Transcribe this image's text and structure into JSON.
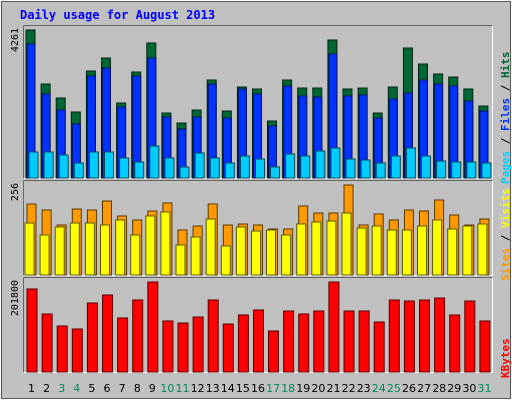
{
  "title": "Daily usage for August 2013",
  "colors": {
    "background": "#c0c0c0",
    "title": "#0000ff",
    "hits": "#006633",
    "files": "#0033ff",
    "pages": "#00ccff",
    "visits": "#ff9900",
    "sites": "#ffff00",
    "kbytes": "#ff0000",
    "weekend_day": "#008a5a",
    "weekday": "#000000"
  },
  "chart_data": [
    {
      "type": "bar",
      "title": "Daily usage for August 2013",
      "categories": [
        "1",
        "2",
        "3",
        "4",
        "5",
        "6",
        "7",
        "8",
        "9",
        "10",
        "11",
        "12",
        "13",
        "14",
        "15",
        "16",
        "17",
        "18",
        "19",
        "20",
        "21",
        "22",
        "23",
        "24",
        "25",
        "26",
        "27",
        "28",
        "29",
        "30",
        "31"
      ],
      "weekend_days": [
        "3",
        "4",
        "10",
        "11",
        "17",
        "18",
        "24",
        "25",
        "31"
      ],
      "y_max_label": "4261",
      "ylim": [
        0,
        4261
      ],
      "label_parts": [
        "Pages",
        " / ",
        "Files",
        " / ",
        "Hits"
      ],
      "series": [
        {
          "name": "Hits",
          "values": [
            4261,
            2720,
            2290,
            1900,
            3090,
            3450,
            2170,
            3050,
            3900,
            1860,
            1580,
            1970,
            2830,
            1940,
            2620,
            2550,
            1640,
            2820,
            2580,
            2590,
            3980,
            2570,
            2580,
            1860,
            2610,
            3730,
            3290,
            2990,
            2910,
            2570,
            2080
          ]
        },
        {
          "name": "Files",
          "values": [
            3860,
            2410,
            1970,
            1560,
            2930,
            3160,
            2040,
            2930,
            3460,
            1760,
            1400,
            1770,
            2720,
            1720,
            2560,
            2430,
            1500,
            2650,
            2350,
            2340,
            3570,
            2360,
            2400,
            1730,
            2280,
            2450,
            2830,
            2700,
            2640,
            2220,
            1930
          ]
        },
        {
          "name": "Pages",
          "values": [
            760,
            750,
            650,
            430,
            750,
            740,
            580,
            450,
            930,
            580,
            310,
            720,
            590,
            430,
            620,
            560,
            330,
            700,
            640,
            790,
            850,
            560,
            520,
            440,
            620,
            860,
            630,
            490,
            460,
            470,
            440
          ]
        }
      ]
    },
    {
      "type": "bar",
      "categories": [
        "1",
        "2",
        "3",
        "4",
        "5",
        "6",
        "7",
        "8",
        "9",
        "10",
        "11",
        "12",
        "13",
        "14",
        "15",
        "16",
        "17",
        "18",
        "19",
        "20",
        "21",
        "22",
        "23",
        "24",
        "25",
        "26",
        "27",
        "28",
        "29",
        "30",
        "31"
      ],
      "y_max_label": "256",
      "ylim": [
        0,
        256
      ],
      "label_parts": [
        "Sites",
        " / ",
        "Visits"
      ],
      "series": [
        {
          "name": "Visits",
          "values": [
            203,
            184,
            143,
            188,
            184,
            210,
            169,
            157,
            181,
            204,
            127,
            140,
            201,
            141,
            144,
            142,
            131,
            131,
            196,
            176,
            176,
            256,
            142,
            174,
            156,
            186,
            182,
            213,
            172,
            142,
            160
          ]
        },
        {
          "name": "Sites",
          "values": [
            148,
            114,
            136,
            148,
            148,
            141,
            157,
            114,
            168,
            179,
            84,
            109,
            160,
            83,
            136,
            126,
            127,
            113,
            145,
            150,
            155,
            175,
            135,
            139,
            128,
            128,
            139,
            157,
            130,
            140,
            145
          ]
        }
      ]
    },
    {
      "type": "bar",
      "categories": [
        "1",
        "2",
        "3",
        "4",
        "5",
        "6",
        "7",
        "8",
        "9",
        "10",
        "11",
        "12",
        "13",
        "14",
        "15",
        "16",
        "17",
        "18",
        "19",
        "20",
        "21",
        "22",
        "23",
        "24",
        "25",
        "26",
        "27",
        "28",
        "29",
        "30",
        "31"
      ],
      "y_max_label": "201800",
      "ylim": [
        0,
        201800
      ],
      "label_parts": [
        "KBytes"
      ],
      "series": [
        {
          "name": "KBytes",
          "values": [
            187000,
            129000,
            103000,
            96000,
            155000,
            172000,
            122000,
            162000,
            201800,
            115000,
            110000,
            124000,
            162000,
            108000,
            128000,
            140000,
            93000,
            137000,
            131000,
            136000,
            201800,
            137000,
            137000,
            112000,
            162000,
            159000,
            162000,
            166000,
            127000,
            160000,
            114000
          ]
        }
      ]
    }
  ]
}
